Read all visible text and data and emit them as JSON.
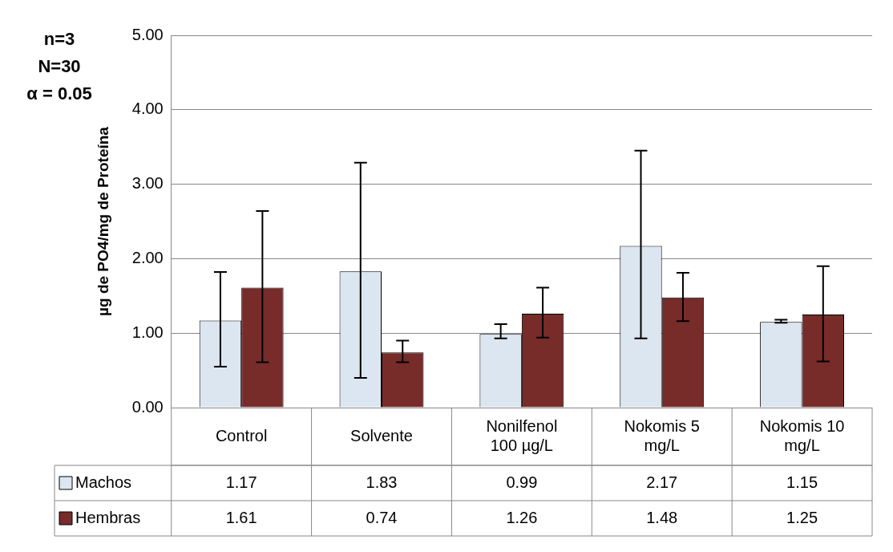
{
  "chart_data": {
    "type": "bar",
    "ylabel": "µg de PO4/mg de Proteína",
    "categories": [
      "Control",
      "Solvente",
      "Nonilfenol 100 µg/L",
      "Nokomis 5 mg/L",
      "Nokomis 10 mg/L"
    ],
    "series": [
      {
        "name": "Machos",
        "color": "#dce6f1",
        "values": [
          1.17,
          1.83,
          0.99,
          2.17,
          1.15
        ],
        "errors": [
          [
            0.55,
            1.82
          ],
          [
            0.4,
            3.29
          ],
          [
            0.93,
            1.12
          ],
          [
            0.93,
            3.45
          ],
          [
            1.14,
            1.18
          ]
        ]
      },
      {
        "name": "Hembras",
        "color": "#772c2a",
        "values": [
          1.61,
          0.74,
          1.26,
          1.48,
          1.25
        ],
        "errors": [
          [
            0.61,
            2.64
          ],
          [
            0.61,
            0.9
          ],
          [
            0.94,
            1.61
          ],
          [
            1.16,
            1.81
          ],
          [
            0.62,
            1.9
          ]
        ]
      }
    ],
    "ylim": [
      0,
      5
    ],
    "yticks": [
      {
        "value": 0,
        "label": "0.00"
      },
      {
        "value": 1,
        "label": "1.00"
      },
      {
        "value": 2,
        "label": "2.00"
      },
      {
        "value": 3,
        "label": "3.00"
      },
      {
        "value": 4,
        "label": "4.00"
      },
      {
        "value": 5,
        "label": "5.00"
      }
    ],
    "grid": "y",
    "legend": "bottom",
    "data_labels": true,
    "annotations": [
      "n=3",
      "N=30",
      "α = 0.05"
    ]
  }
}
